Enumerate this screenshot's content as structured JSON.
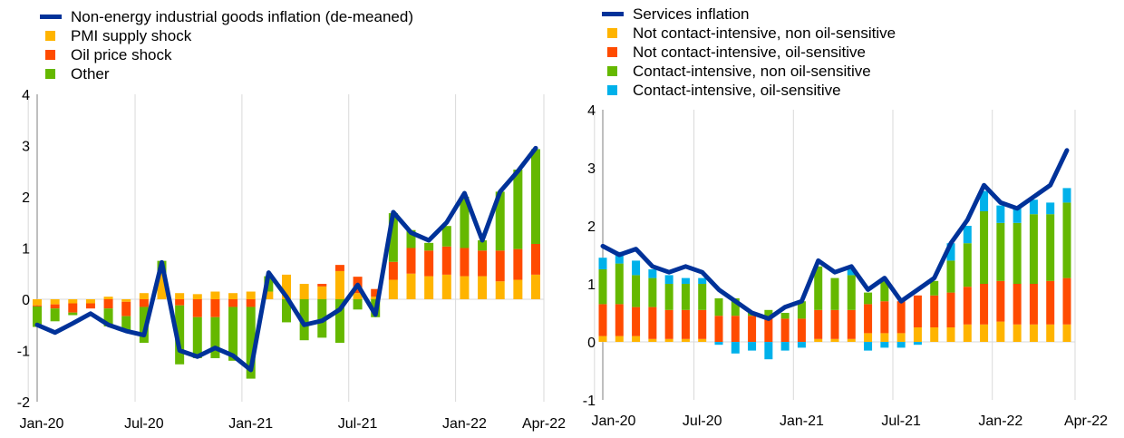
{
  "chart_data": [
    {
      "type": "bar",
      "stacked": true,
      "ylim": [
        -2,
        4
      ],
      "yticks": [
        "-2",
        "-1",
        "0",
        "1",
        "2",
        "3",
        "4"
      ],
      "xticks": [
        "Jan-20",
        "Jul-20",
        "Jan-21",
        "Jul-21",
        "Jan-22",
        "Apr-22"
      ],
      "grid": "vertical",
      "legend_position": "top-left",
      "line": {
        "name": "Non-energy industrial goods inflation (de-meaned)",
        "color": "#003299",
        "values": [
          -0.5,
          -0.65,
          -0.47,
          -0.28,
          -0.5,
          -0.62,
          -0.7,
          0.72,
          -1.0,
          -1.12,
          -0.95,
          -1.1,
          -1.38,
          0.52,
          0.05,
          -0.5,
          -0.42,
          -0.2,
          0.28,
          -0.3,
          1.7,
          1.3,
          1.15,
          1.5,
          2.07,
          1.15,
          2.1,
          2.5,
          2.95
        ]
      },
      "series": [
        {
          "name": "PMI supply shock",
          "color": "#FFB400",
          "values": [
            -0.12,
            -0.1,
            -0.08,
            -0.08,
            0.05,
            -0.05,
            0.12,
            0.5,
            0.12,
            0.1,
            0.15,
            0.12,
            0.15,
            0.15,
            0.48,
            0.3,
            0.25,
            0.55,
            0.12,
            0.05,
            0.38,
            0.5,
            0.45,
            0.48,
            0.45,
            0.45,
            0.35,
            0.38,
            0.48
          ]
        },
        {
          "name": "Oil price shock",
          "color": "#FF4B00",
          "values": [
            -0.02,
            -0.08,
            -0.18,
            -0.1,
            -0.18,
            -0.28,
            -0.15,
            0.0,
            -0.12,
            -0.35,
            -0.35,
            -0.15,
            -0.15,
            0.0,
            0.0,
            0.0,
            0.05,
            0.12,
            0.32,
            0.15,
            0.35,
            0.5,
            0.5,
            0.55,
            0.55,
            0.5,
            0.6,
            0.6,
            0.6
          ]
        },
        {
          "name": "Other",
          "color": "#65B800",
          "values": [
            -0.4,
            -0.25,
            -0.05,
            0.0,
            -0.35,
            -0.3,
            -0.7,
            0.25,
            -1.15,
            -0.8,
            -0.8,
            -1.05,
            -1.4,
            0.3,
            -0.45,
            -0.8,
            -0.75,
            -0.85,
            -0.2,
            -0.35,
            0.95,
            0.35,
            0.15,
            0.4,
            1.0,
            0.2,
            1.15,
            1.55,
            1.85
          ]
        }
      ]
    },
    {
      "type": "bar",
      "stacked": true,
      "ylim": [
        -1,
        4
      ],
      "yticks": [
        "-1",
        "0",
        "1",
        "2",
        "3",
        "4"
      ],
      "xticks": [
        "Jan-20",
        "Jul-20",
        "Jan-21",
        "Jul-21",
        "Jan-22",
        "Apr-22"
      ],
      "grid": "vertical",
      "legend_position": "top-left",
      "line": {
        "name": "Services inflation",
        "color": "#003299",
        "values": [
          1.65,
          1.5,
          1.6,
          1.3,
          1.2,
          1.3,
          1.2,
          0.9,
          0.7,
          0.5,
          0.4,
          0.6,
          0.7,
          1.4,
          1.2,
          1.3,
          0.9,
          1.1,
          0.7,
          0.9,
          1.1,
          1.7,
          2.1,
          2.7,
          2.4,
          2.3,
          2.5,
          2.7,
          3.3
        ]
      },
      "series": [
        {
          "name": "Not contact-intensive, non oil-sensitive",
          "color": "#FFB400",
          "values": [
            0.1,
            0.1,
            0.1,
            0.05,
            0.05,
            0.05,
            0.05,
            0.0,
            0.0,
            0.0,
            0.0,
            0.0,
            0.0,
            0.05,
            0.05,
            0.05,
            0.15,
            0.15,
            0.15,
            0.25,
            0.25,
            0.25,
            0.3,
            0.3,
            0.35,
            0.3,
            0.3,
            0.3,
            0.3
          ]
        },
        {
          "name": "Not contact-intensive, oil-sensitive",
          "color": "#FF4B00",
          "values": [
            0.55,
            0.55,
            0.5,
            0.55,
            0.5,
            0.5,
            0.5,
            0.45,
            0.45,
            0.45,
            0.4,
            0.4,
            0.4,
            0.5,
            0.5,
            0.5,
            0.5,
            0.55,
            0.55,
            0.55,
            0.55,
            0.6,
            0.65,
            0.7,
            0.7,
            0.7,
            0.7,
            0.75,
            0.8
          ]
        },
        {
          "name": "Contact-intensive, non oil-sensitive",
          "color": "#65B800",
          "values": [
            0.6,
            0.7,
            0.55,
            0.5,
            0.45,
            0.45,
            0.45,
            0.3,
            0.3,
            0.05,
            0.15,
            0.1,
            0.3,
            0.75,
            0.55,
            0.6,
            0.2,
            0.35,
            0.0,
            0.0,
            0.25,
            0.55,
            0.75,
            1.25,
            1.0,
            1.05,
            1.2,
            1.15,
            1.3
          ]
        },
        {
          "name": "Contact-intensive, oil-sensitive",
          "color": "#00B1EA",
          "values": [
            0.2,
            0.2,
            0.25,
            0.15,
            0.15,
            0.1,
            0.1,
            -0.05,
            -0.2,
            -0.15,
            -0.3,
            -0.15,
            -0.1,
            0.0,
            0.0,
            0.1,
            -0.15,
            -0.1,
            -0.1,
            -0.05,
            0.0,
            0.3,
            0.3,
            0.35,
            0.3,
            0.25,
            0.25,
            0.2,
            0.25
          ]
        }
      ]
    }
  ]
}
